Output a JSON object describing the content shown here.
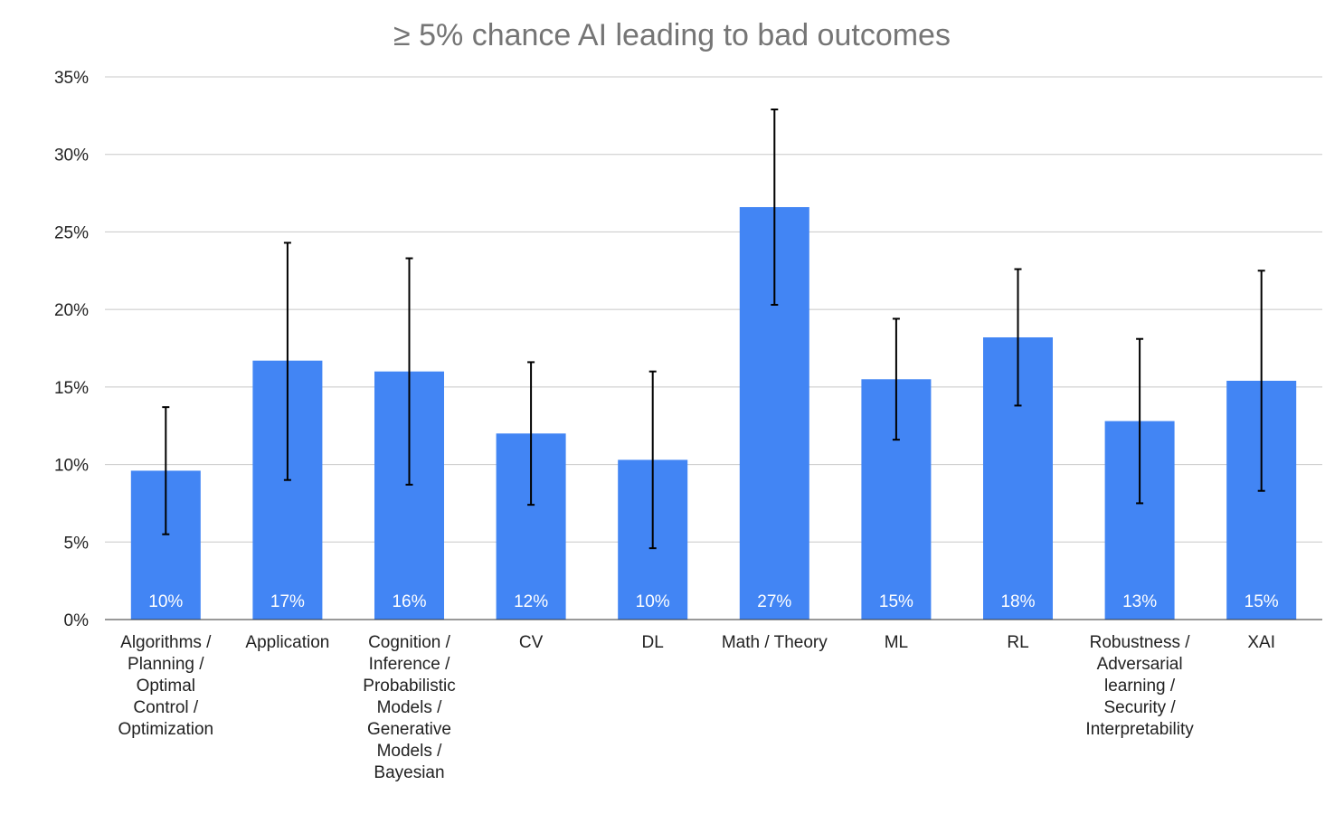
{
  "chart_data": {
    "type": "bar",
    "title": "≥ 5% chance AI leading to bad outcomes",
    "xlabel": "",
    "ylabel": "",
    "ylim": [
      0,
      35
    ],
    "ytick_values": [
      0,
      5,
      10,
      15,
      20,
      25,
      30,
      35
    ],
    "ytick_labels": [
      "0%",
      "5%",
      "10%",
      "15%",
      "20%",
      "25%",
      "30%",
      "35%"
    ],
    "grid": true,
    "bar_color": "#4285f4",
    "categories": [
      [
        "Algorithms /",
        "Planning /",
        "Optimal",
        "Control /",
        "Optimization"
      ],
      [
        "Application"
      ],
      [
        "Cognition /",
        "Inference /",
        "Probabilistic",
        "Models /",
        "Generative",
        "Models /",
        "Bayesian"
      ],
      [
        "CV"
      ],
      [
        "DL"
      ],
      [
        "Math / Theory"
      ],
      [
        "ML"
      ],
      [
        "RL"
      ],
      [
        "Robustness /",
        "Adversarial",
        "learning /",
        "Security /",
        "Interpretability"
      ],
      [
        "XAI"
      ]
    ],
    "values": [
      9.6,
      16.7,
      16.0,
      12.0,
      10.3,
      26.6,
      15.5,
      18.2,
      12.8,
      15.4
    ],
    "error_low": [
      5.5,
      9.0,
      8.7,
      7.4,
      4.6,
      20.3,
      11.6,
      13.8,
      7.5,
      8.3
    ],
    "error_high": [
      13.7,
      24.3,
      23.3,
      16.6,
      16.0,
      32.9,
      19.4,
      22.6,
      18.1,
      22.5
    ],
    "data_labels": [
      "10%",
      "17%",
      "16%",
      "12%",
      "10%",
      "27%",
      "15%",
      "18%",
      "13%",
      "15%"
    ]
  }
}
